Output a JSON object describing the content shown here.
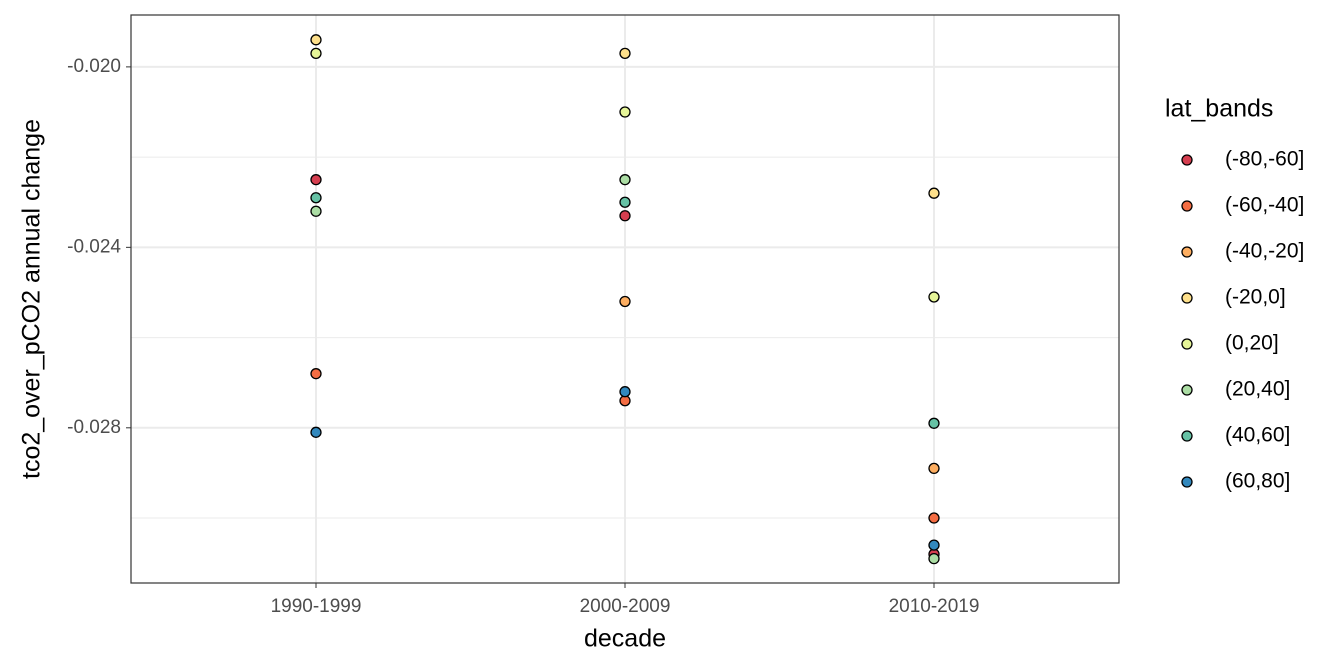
{
  "chart_data": {
    "type": "scatter",
    "x_label": "decade",
    "y_label": "tco2_over_pCO2 annual change",
    "categories": [
      "1990-1999",
      "2000-2009",
      "2010-2019"
    ],
    "ylim": [
      -0.03144,
      -0.01885
    ],
    "yticks": [
      {
        "value": -0.028,
        "label": "-0.028"
      },
      {
        "value": -0.024,
        "label": "-0.024"
      },
      {
        "value": -0.02,
        "label": "-0.020"
      }
    ],
    "y_minor_ticks": [
      -0.03,
      -0.026,
      -0.022
    ],
    "grid": true,
    "legend_title": "lat_bands",
    "legend_position": "right",
    "series": [
      {
        "name": "(-80,-60]",
        "color": "#D53E4F",
        "values": [
          -0.0225,
          -0.0233,
          -0.0308
        ]
      },
      {
        "name": "(-60,-40]",
        "color": "#F46D43",
        "values": [
          -0.0268,
          -0.0274,
          -0.03
        ]
      },
      {
        "name": "(-40,-20]",
        "color": "#FDAE61",
        "values": [
          null,
          -0.0252,
          -0.0289
        ]
      },
      {
        "name": "(-20,0]",
        "color": "#FEE08B",
        "values": [
          -0.0194,
          -0.0197,
          -0.0228
        ]
      },
      {
        "name": "(0,20]",
        "color": "#E6F598",
        "values": [
          -0.0197,
          -0.021,
          -0.0251
        ]
      },
      {
        "name": "(20,40]",
        "color": "#ABDDA4",
        "values": [
          -0.0232,
          -0.0225,
          -0.0309
        ]
      },
      {
        "name": "(40,60]",
        "color": "#66C2A5",
        "values": [
          -0.0229,
          -0.023,
          -0.0279
        ]
      },
      {
        "name": "(60,80]",
        "color": "#3288BD",
        "values": [
          -0.0281,
          -0.0272,
          -0.0306
        ]
      }
    ]
  }
}
